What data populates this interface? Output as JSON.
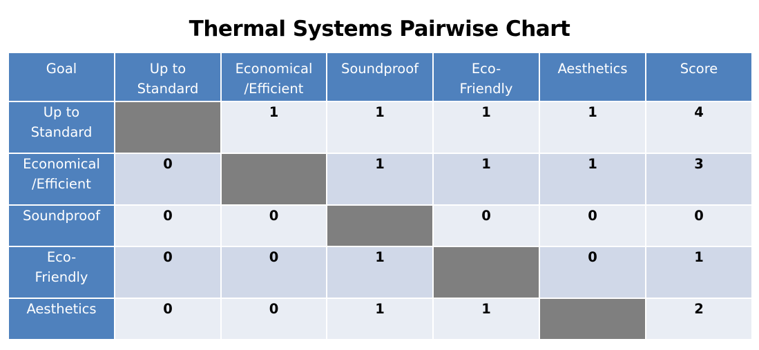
{
  "title": "Thermal Systems Pairwise Chart",
  "chart_data": {
    "type": "table",
    "title": "Thermal Systems Pairwise Chart",
    "header": {
      "goal_label": "Goal",
      "columns": [
        [
          "Up to",
          "Standard"
        ],
        [
          "Economical",
          "/Efficient"
        ],
        [
          "Soundproof"
        ],
        [
          "Eco-",
          "Friendly"
        ],
        [
          "Aesthetics"
        ]
      ],
      "score_label": "Score"
    },
    "rows": [
      {
        "label": [
          "Up to",
          "Standard"
        ],
        "values": [
          null,
          "1",
          "1",
          "1",
          "1"
        ],
        "score": "4"
      },
      {
        "label": [
          "Economical",
          "/Efficient"
        ],
        "values": [
          "0",
          null,
          "1",
          "1",
          "1"
        ],
        "score": "3"
      },
      {
        "label": [
          "Soundproof"
        ],
        "values": [
          "0",
          "0",
          null,
          "0",
          "0"
        ],
        "score": "0"
      },
      {
        "label": [
          "Eco-",
          "Friendly"
        ],
        "values": [
          "0",
          "0",
          "1",
          null,
          "0"
        ],
        "score": "1"
      },
      {
        "label": [
          "Aesthetics"
        ],
        "values": [
          "0",
          "0",
          "1",
          "1",
          null
        ],
        "score": "2"
      }
    ]
  },
  "colors": {
    "header_blue": "#4f81bd",
    "band_light": "#e9edf4",
    "band_dark": "#d0d8e8",
    "diagonal_gray": "#7f7f7f"
  }
}
